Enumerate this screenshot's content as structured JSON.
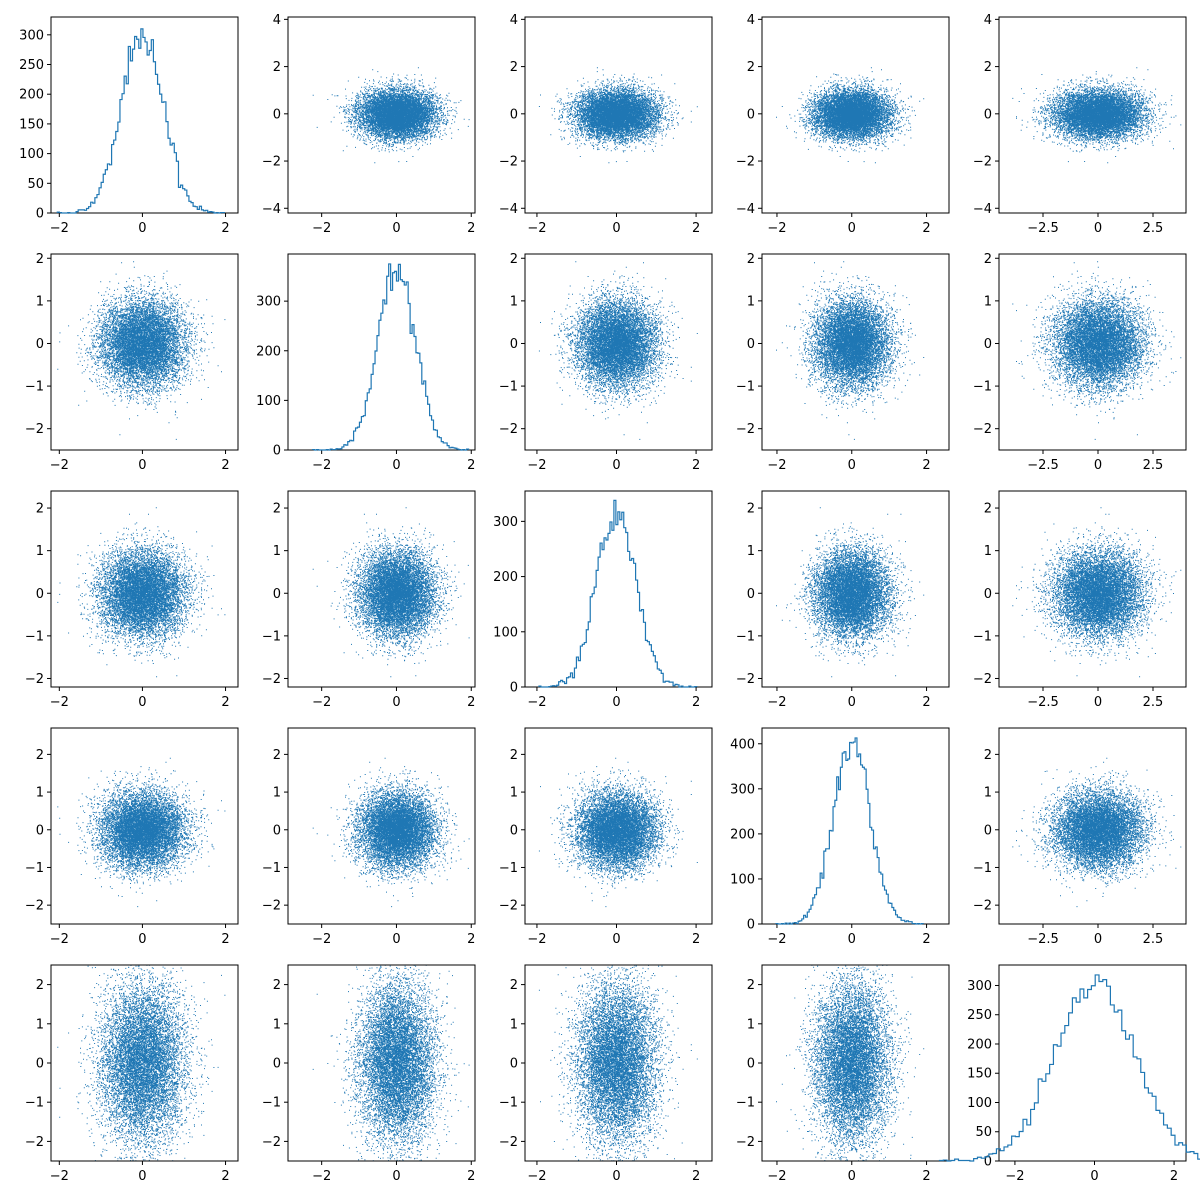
{
  "figure": {
    "type": "pairplot-grid",
    "rows": 5,
    "cols": 5,
    "diagonal": "histogram",
    "off_diagonal": "scatter",
    "color": "#1f77b4",
    "background": "#ffffff"
  },
  "chart_data": {
    "type": "scatter",
    "variables": 5,
    "distribution": "independent normal, mean 0",
    "points_per_variable": 10000,
    "column_scales": [
      0.5,
      0.5,
      0.5,
      0.5,
      1.0
    ],
    "xlim_by_col": [
      [
        -2.2,
        2.3
      ],
      [
        -2.9,
        2.1
      ],
      [
        -2.3,
        2.4
      ],
      [
        -2.4,
        2.6
      ],
      [
        -4.5,
        4.0
      ]
    ],
    "ylim_by_row": [
      [
        -4.2,
        4.1
      ],
      [
        -2.5,
        2.1
      ],
      [
        -2.2,
        2.4
      ],
      [
        -2.5,
        2.7
      ],
      [
        -2.5,
        2.5
      ]
    ],
    "xticks_by_col": [
      [
        -2,
        0,
        2
      ],
      [
        -2,
        0,
        2
      ],
      [
        -2,
        0,
        2
      ],
      [
        -2,
        0,
        2
      ],
      [
        -2.5,
        0.0,
        2.5
      ]
    ],
    "yticks_by_row": [
      [
        -4,
        -2,
        0,
        2,
        4
      ],
      [
        -2,
        -1,
        0,
        1,
        2
      ],
      [
        -2,
        -1,
        0,
        1,
        2
      ],
      [
        -2,
        -1,
        0,
        1,
        2
      ],
      [
        -2,
        -1,
        0,
        1,
        2
      ]
    ],
    "xlim_scatter_col5": [
      -4.5,
      4.0
    ],
    "diagonal_histograms": [
      {
        "var": 1,
        "xlim": [
          -2.2,
          2.3
        ],
        "ylim": [
          0,
          330
        ],
        "yticks": [
          0,
          50,
          100,
          150,
          200,
          250,
          300
        ],
        "xticks": [
          -2,
          0,
          2
        ],
        "peak": 310
      },
      {
        "var": 2,
        "xlim": [
          -2.9,
          2.1
        ],
        "ylim": [
          0,
          395
        ],
        "yticks": [
          0,
          100,
          200,
          300
        ],
        "xticks": [
          -2,
          0,
          2
        ],
        "peak": 375
      },
      {
        "var": 3,
        "xlim": [
          -2.3,
          2.4
        ],
        "ylim": [
          0,
          355
        ],
        "yticks": [
          0,
          100,
          200,
          300
        ],
        "xticks": [
          -2,
          0,
          2
        ],
        "peak": 338
      },
      {
        "var": 4,
        "xlim": [
          -2.4,
          2.6
        ],
        "ylim": [
          0,
          435
        ],
        "yticks": [
          0,
          100,
          200,
          300,
          400
        ],
        "xticks": [
          -2,
          0,
          2
        ],
        "peak": 413
      },
      {
        "var": 5,
        "xlim": [
          -2.4,
          2.3
        ],
        "ylim": [
          0,
          335
        ],
        "yticks": [
          0,
          50,
          100,
          150,
          200,
          250,
          300
        ],
        "xticks": [
          -2,
          0,
          2
        ],
        "peak": 318
      }
    ],
    "grid": false,
    "legend": "none"
  }
}
